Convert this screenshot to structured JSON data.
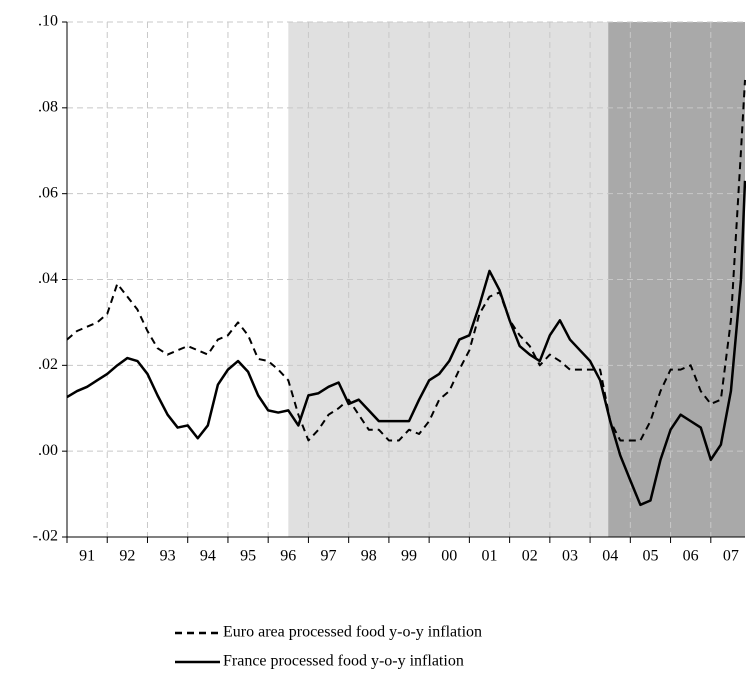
{
  "chart_data": {
    "type": "line",
    "x": [
      1991,
      1991.25,
      1991.5,
      1991.75,
      1992,
      1992.25,
      1992.5,
      1992.75,
      1993,
      1993.25,
      1993.5,
      1993.75,
      1994,
      1994.25,
      1994.5,
      1994.75,
      1995,
      1995.25,
      1995.5,
      1995.75,
      1996,
      1996.25,
      1996.5,
      1996.75,
      1997,
      1997.25,
      1997.5,
      1997.75,
      1998,
      1998.25,
      1998.5,
      1998.75,
      1999,
      1999.25,
      1999.5,
      1999.75,
      2000,
      2000.25,
      2000.5,
      2000.75,
      2001,
      2001.25,
      2001.5,
      2001.75,
      2002,
      2002.25,
      2002.5,
      2002.75,
      2003,
      2003.25,
      2003.5,
      2003.75,
      2004,
      2004.25,
      2004.5,
      2004.75,
      2005,
      2005.25,
      2005.5,
      2005.75,
      2006,
      2006.25,
      2006.5,
      2006.75,
      2007,
      2007.25,
      2007.5,
      2007.75,
      2007.85
    ],
    "series": [
      {
        "name": "Euro area processed food y-o-y inflation",
        "color": "#000000",
        "dashed": true,
        "values": [
          0.026,
          0.028,
          0.029,
          0.03,
          0.032,
          0.039,
          0.036,
          0.033,
          0.028,
          0.024,
          0.0225,
          0.0235,
          0.0245,
          0.0235,
          0.0225,
          0.026,
          0.027,
          0.03,
          0.027,
          0.0215,
          0.021,
          0.019,
          0.0165,
          0.0085,
          0.0025,
          0.005,
          0.0085,
          0.01,
          0.012,
          0.0085,
          0.005,
          0.005,
          0.0025,
          0.0025,
          0.005,
          0.004,
          0.007,
          0.012,
          0.014,
          0.019,
          0.0235,
          0.032,
          0.036,
          0.037,
          0.0305,
          0.027,
          0.0245,
          0.02,
          0.0225,
          0.021,
          0.019,
          0.019,
          0.019,
          0.019,
          0.007,
          0.0025,
          0.0025,
          0.0025,
          0.007,
          0.014,
          0.019,
          0.019,
          0.02,
          0.014,
          0.011,
          0.012,
          0.0305,
          0.07,
          0.0865
        ]
      },
      {
        "name": "France processed food y-o-y inflation",
        "color": "#000000",
        "dashed": false,
        "values": [
          0.0126,
          0.014,
          0.015,
          0.0165,
          0.018,
          0.02,
          0.0217,
          0.021,
          0.018,
          0.013,
          0.0085,
          0.0055,
          0.006,
          0.003,
          0.006,
          0.0155,
          0.019,
          0.021,
          0.0185,
          0.013,
          0.0095,
          0.009,
          0.0095,
          0.006,
          0.013,
          0.0135,
          0.015,
          0.016,
          0.011,
          0.012,
          0.0095,
          0.007,
          0.007,
          0.007,
          0.007,
          0.012,
          0.0165,
          0.018,
          0.021,
          0.026,
          0.027,
          0.034,
          0.042,
          0.0375,
          0.0305,
          0.0245,
          0.0225,
          0.021,
          0.027,
          0.0305,
          0.026,
          0.0235,
          0.021,
          0.0165,
          0.007,
          -0.001,
          -0.0068,
          -0.0125,
          -0.0115,
          -0.002,
          0.005,
          0.0085,
          0.007,
          0.0055,
          -0.002,
          0.0015,
          0.014,
          0.04,
          0.063
        ]
      }
    ],
    "xlim": [
      1991,
      2007.85
    ],
    "xticks": [
      {
        "value": 1991,
        "label": "91"
      },
      {
        "value": 1992,
        "label": "92"
      },
      {
        "value": 1993,
        "label": "93"
      },
      {
        "value": 1994,
        "label": "94"
      },
      {
        "value": 1995,
        "label": "95"
      },
      {
        "value": 1996,
        "label": "96"
      },
      {
        "value": 1997,
        "label": "97"
      },
      {
        "value": 1998,
        "label": "98"
      },
      {
        "value": 1999,
        "label": "99"
      },
      {
        "value": 2000,
        "label": "00"
      },
      {
        "value": 2001,
        "label": "01"
      },
      {
        "value": 2002,
        "label": "02"
      },
      {
        "value": 2003,
        "label": "03"
      },
      {
        "value": 2004,
        "label": "04"
      },
      {
        "value": 2005,
        "label": "05"
      },
      {
        "value": 2006,
        "label": "06"
      },
      {
        "value": 2007,
        "label": "07"
      }
    ],
    "ylim": [
      -0.02,
      0.1
    ],
    "yticks": [
      {
        "value": -0.02,
        "label": "-.02"
      },
      {
        "value": 0,
        "label": ".00"
      },
      {
        "value": 0.02,
        "label": ".02"
      },
      {
        "value": 0.04,
        "label": ".04"
      },
      {
        "value": 0.06,
        "label": ".06"
      },
      {
        "value": 0.08,
        "label": ".08"
      },
      {
        "value": 0.1,
        "label": ".10"
      }
    ],
    "shaded_regions": [
      {
        "xlim": [
          1996.5,
          2004.45
        ],
        "color": "#e0e0e0"
      },
      {
        "xlim": [
          2004.45,
          2007.85
        ],
        "color": "#a9a9a9"
      }
    ],
    "grid": true,
    "legend": "bottom"
  }
}
